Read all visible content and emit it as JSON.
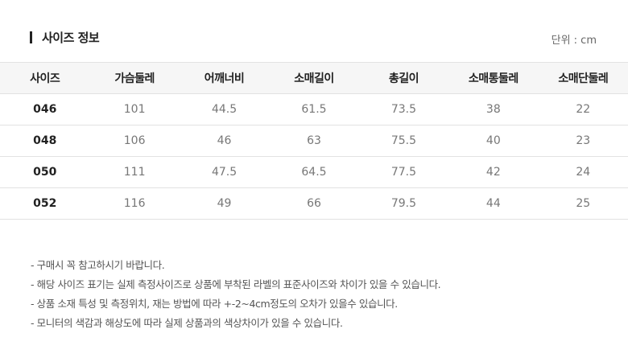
{
  "header": {
    "title": "사이즈 정보",
    "unit": "단위 : cm"
  },
  "table": {
    "columns": [
      "사이즈",
      "가슴둘레",
      "어깨너비",
      "소매길이",
      "총길이",
      "소매통둘레",
      "소매단둘레"
    ],
    "rows": [
      [
        "046",
        "101",
        "44.5",
        "61.5",
        "73.5",
        "38",
        "22"
      ],
      [
        "048",
        "106",
        "46",
        "63",
        "75.5",
        "40",
        "23"
      ],
      [
        "050",
        "111",
        "47.5",
        "64.5",
        "77.5",
        "42",
        "24"
      ],
      [
        "052",
        "116",
        "49",
        "66",
        "79.5",
        "44",
        "25"
      ]
    ]
  },
  "notes": [
    "- 구매시 꼭 참고하시기 바랍니다.",
    "- 해당 사이즈 표기는 실제 측정사이즈로 상품에 부착된 라벨의 표준사이즈와 차이가 있을 수 있습니다.",
    "- 상품 소재 특성 및 측정위치, 재는 방법에 따라 +-2~4cm정도의 오차가 있을수 있습니다.",
    "- 모니터의 색감과 해상도에 따라 실제 상품과의 색상차이가 있을 수 있습니다."
  ]
}
